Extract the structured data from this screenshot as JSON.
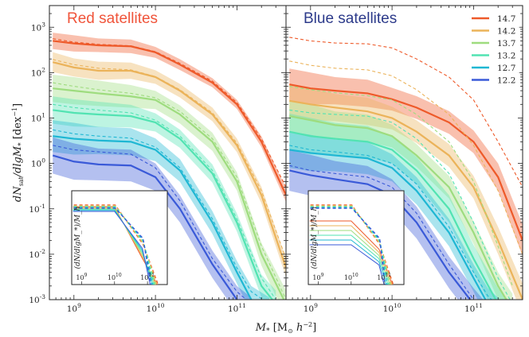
{
  "chart_data": {
    "type": "line",
    "ylabel": "dN_sat/dlgM_* [dex^-1]",
    "xlabel": "M_* [M_⊙ h^-2]",
    "x_scale": "log",
    "y_scale": "log",
    "xlim": [
      500000000.0,
      400000000000.0
    ],
    "ylim": [
      0.001,
      3000
    ],
    "x_ticks": [
      "10^9",
      "10^10",
      "10^11"
    ],
    "y_ticks": [
      "10^-3",
      "10^-2",
      "10^-1",
      "10^0",
      "10^1",
      "10^2",
      "10^3"
    ],
    "legend": {
      "placement": "top-right",
      "entries": [
        {
          "label": "14.7",
          "color": "#ee5a2a"
        },
        {
          "label": "14.2",
          "color": "#ebb35a"
        },
        {
          "label": "13.7",
          "color": "#9edc7e"
        },
        {
          "label": "13.2",
          "color": "#52e3b2"
        },
        {
          "label": "12.7",
          "color": "#1fb7d3"
        },
        {
          "label": "12.2",
          "color": "#3a5ad8"
        }
      ]
    },
    "panels": [
      {
        "title": "Red satellites",
        "title_color": "#f0543a",
        "inset_ylabel": "(dN/dlgM_*)/M_h",
        "inset_xticks": [
          "10^9",
          "10^10",
          "10^11"
        ],
        "series": [
          {
            "name": "14.7",
            "x": [
              550000000.0,
              1000000000.0,
              2000000000.0,
              5000000000.0,
              10000000000.0,
              20000000000.0,
              50000000000.0,
              100000000000.0,
              200000000000.0,
              400000000000.0
            ],
            "values": [
              500,
              440,
              400,
              380,
              280,
              150,
              60,
              20,
              3,
              0.2
            ],
            "band": [
              0.18,
              0.18,
              0.15,
              0.15,
              0.12,
              0.12,
              0.1,
              0.1,
              0.12,
              0.15
            ],
            "dashed": [
              560,
              470,
              420,
              390,
              290,
              160,
              65,
              22,
              3.5,
              0.3
            ]
          },
          {
            "name": "14.2",
            "x": [
              550000000.0,
              1000000000.0,
              2000000000.0,
              5000000000.0,
              10000000000.0,
              20000000000.0,
              50000000000.0,
              100000000000.0,
              200000000000.0,
              400000000000.0
            ],
            "values": [
              170,
              130,
              110,
              110,
              80,
              40,
              12,
              2.5,
              0.2,
              0.005
            ],
            "band": [
              0.22,
              0.2,
              0.2,
              0.18,
              0.15,
              0.15,
              0.15,
              0.15,
              0.18,
              0.2
            ],
            "dashed": [
              195,
              150,
              125,
              115,
              82,
              42,
              13,
              2.8,
              0.25,
              0.008
            ]
          },
          {
            "name": "13.7",
            "x": [
              550000000.0,
              1000000000.0,
              2000000000.0,
              5000000000.0,
              10000000000.0,
              20000000000.0,
              50000000000.0,
              100000000000.0,
              200000000000.0,
              400000000000.0
            ],
            "values": [
              45,
              40,
              35,
              30,
              25,
              12,
              3,
              0.4,
              0.01,
              0.0008
            ],
            "band": [
              0.3,
              0.3,
              0.28,
              0.25,
              0.2,
              0.2,
              0.2,
              0.2,
              0.25,
              0.3
            ],
            "dashed": [
              60,
              50,
              42,
              35,
              28,
              14,
              3.5,
              0.5,
              0.015,
              0.001
            ]
          },
          {
            "name": "13.2",
            "x": [
              550000000.0,
              1000000000.0,
              2000000000.0,
              5000000000.0,
              10000000000.0,
              20000000000.0,
              50000000000.0,
              100000000000.0,
              200000000000.0,
              300000000000.0
            ],
            "values": [
              15,
              13,
              12,
              11,
              8,
              3.5,
              0.6,
              0.05,
              0.002,
              0.0008
            ],
            "band": [
              0.3,
              0.3,
              0.28,
              0.25,
              0.2,
              0.2,
              0.2,
              0.2,
              0.25,
              0.3
            ],
            "dashed": [
              20,
              17,
              15,
              13,
              9,
              4,
              0.7,
              0.06,
              0.003,
              0.001
            ]
          },
          {
            "name": "12.7",
            "x": [
              550000000.0,
              1000000000.0,
              2000000000.0,
              5000000000.0,
              10000000000.0,
              20000000000.0,
              50000000000.0,
              100000000000.0,
              150000000000.0,
              250000000000.0
            ],
            "values": [
              4,
              3.5,
              3.2,
              3,
              2,
              0.7,
              0.05,
              0.004,
              0.001,
              0.0005
            ],
            "band": [
              0.35,
              0.35,
              0.3,
              0.3,
              0.25,
              0.25,
              0.25,
              0.25,
              0.3,
              0.35
            ],
            "dashed": [
              5.5,
              4.5,
              4,
              3.6,
              2.3,
              0.8,
              0.06,
              0.005,
              0.0015,
              0.0008
            ]
          },
          {
            "name": "12.2",
            "x": [
              550000000.0,
              1000000000.0,
              2000000000.0,
              5000000000.0,
              10000000000.0,
              20000000000.0,
              50000000000.0,
              100000000000.0,
              150000000000.0
            ],
            "values": [
              1.5,
              1.1,
              0.95,
              0.9,
              0.5,
              0.1,
              0.006,
              0.001,
              0.0005
            ],
            "band": [
              0.4,
              0.4,
              0.35,
              0.35,
              0.3,
              0.3,
              0.3,
              0.3,
              0.35
            ],
            "dashed": [
              2.5,
              2,
              1.8,
              1.6,
              0.8,
              0.15,
              0.008,
              0.0015,
              0.0008
            ]
          }
        ]
      },
      {
        "title": "Blue satellites",
        "title_color": "#2c3a8a",
        "inset_ylabel": "(dN/dlgM_*)/M_h",
        "inset_xticks": [
          "10^9",
          "10^10",
          "10^11"
        ],
        "series": [
          {
            "name": "14.7",
            "x": [
              550000000.0,
              1000000000.0,
              2000000000.0,
              5000000000.0,
              10000000000.0,
              20000000000.0,
              50000000000.0,
              100000000000.0,
              200000000000.0,
              400000000000.0
            ],
            "values": [
              55,
              45,
              40,
              35,
              26,
              17,
              8,
              3,
              0.5,
              0.02
            ],
            "band": [
              0.35,
              0.35,
              0.3,
              0.3,
              0.25,
              0.25,
              0.25,
              0.25,
              0.3,
              0.35
            ],
            "dashed": [
              600,
              500,
              450,
              430,
              350,
              200,
              80,
              25,
              3,
              0.3
            ]
          },
          {
            "name": "14.2",
            "x": [
              550000000.0,
              1000000000.0,
              2000000000.0,
              5000000000.0,
              10000000000.0,
              20000000000.0,
              50000000000.0,
              100000000000.0,
              200000000000.0,
              400000000000.0
            ],
            "values": [
              24,
              20,
              17,
              14,
              10,
              5,
              1.5,
              0.3,
              0.02,
              0.001
            ],
            "band": [
              0.35,
              0.35,
              0.3,
              0.3,
              0.25,
              0.25,
              0.25,
              0.25,
              0.3,
              0.35
            ],
            "dashed": [
              180,
              145,
              125,
              115,
              85,
              42,
              12,
              2.5,
              0.25,
              0.01
            ]
          },
          {
            "name": "13.7",
            "x": [
              550000000.0,
              1000000000.0,
              2000000000.0,
              5000000000.0,
              10000000000.0,
              20000000000.0,
              50000000000.0,
              100000000000.0,
              200000000000.0,
              300000000000.0
            ],
            "values": [
              11,
              9,
              7,
              6,
              4,
              1.5,
              0.3,
              0.03,
              0.002,
              0.0006
            ],
            "band": [
              0.35,
              0.35,
              0.3,
              0.3,
              0.25,
              0.25,
              0.25,
              0.25,
              0.3,
              0.35
            ],
            "dashed": [
              50,
              42,
              36,
              31,
              25,
              12,
              3,
              0.4,
              0.015,
              0.002
            ]
          },
          {
            "name": "13.2",
            "x": [
              550000000.0,
              1000000000.0,
              2000000000.0,
              5000000000.0,
              10000000000.0,
              20000000000.0,
              50000000000.0,
              100000000000.0,
              200000000000.0,
              300000000000.0
            ],
            "values": [
              5,
              4,
              3.5,
              3,
              2,
              0.7,
              0.1,
              0.008,
              0.0008,
              0.0003
            ],
            "band": [
              0.4,
              0.4,
              0.35,
              0.35,
              0.3,
              0.3,
              0.3,
              0.3,
              0.35,
              0.4
            ],
            "dashed": [
              15,
              13,
              12,
              11,
              8,
              3.5,
              0.6,
              0.05,
              0.003,
              0.0008
            ]
          },
          {
            "name": "12.7",
            "x": [
              550000000.0,
              1000000000.0,
              2000000000.0,
              5000000000.0,
              10000000000.0,
              20000000000.0,
              50000000000.0,
              100000000000.0,
              150000000000.0,
              250000000000.0
            ],
            "values": [
              2,
              1.7,
              1.5,
              1.3,
              0.8,
              0.25,
              0.03,
              0.003,
              0.0008,
              0.0003
            ],
            "band": [
              0.4,
              0.4,
              0.35,
              0.35,
              0.3,
              0.3,
              0.3,
              0.3,
              0.35,
              0.4
            ],
            "dashed": [
              2.5,
              2,
              1.8,
              1.5,
              1,
              0.35,
              0.04,
              0.004,
              0.0012,
              0.0005
            ]
          },
          {
            "name": "12.2",
            "x": [
              550000000.0,
              1000000000.0,
              2000000000.0,
              5000000000.0,
              10000000000.0,
              20000000000.0,
              50000000000.0,
              100000000000.0,
              150000000000.0
            ],
            "values": [
              0.7,
              0.55,
              0.45,
              0.35,
              0.2,
              0.05,
              0.004,
              0.0008,
              0.0003
            ],
            "band": [
              0.45,
              0.45,
              0.4,
              0.4,
              0.35,
              0.35,
              0.35,
              0.35,
              0.4
            ],
            "dashed": [
              0.9,
              0.7,
              0.6,
              0.5,
              0.3,
              0.08,
              0.006,
              0.001,
              0.0004
            ]
          }
        ]
      }
    ]
  }
}
